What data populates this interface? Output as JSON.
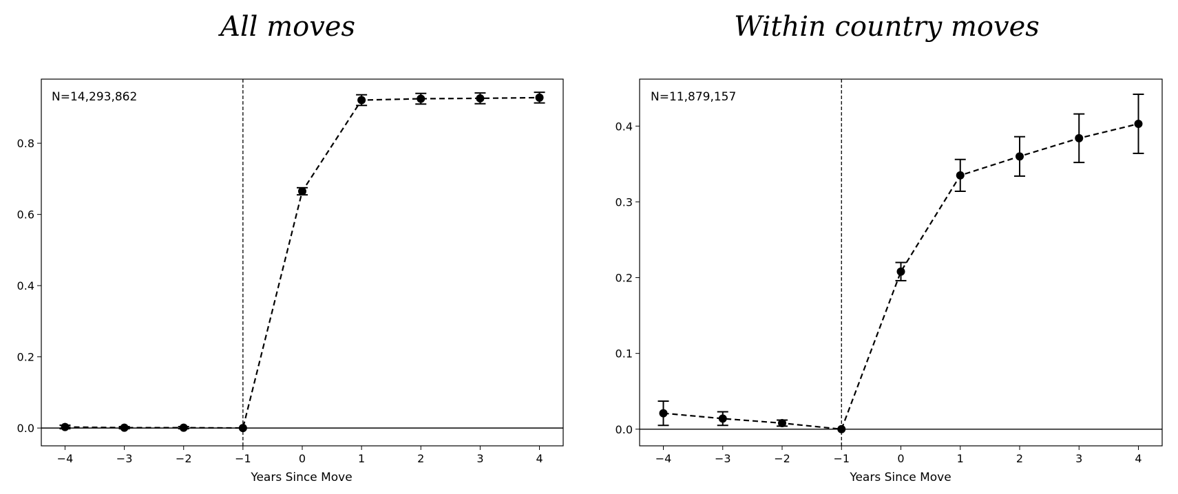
{
  "chart_data": [
    {
      "type": "line",
      "title": "All moves",
      "xlabel": "Years Since Move",
      "ylabel": "",
      "annotation": "N=14,293,862",
      "x": [
        -4,
        -3,
        -2,
        -1,
        0,
        1,
        2,
        3,
        4
      ],
      "xticks": [
        "−4",
        "−3",
        "−2",
        "−1",
        "0",
        "1",
        "2",
        "3",
        "4"
      ],
      "xlim": [
        -4.4,
        4.4
      ],
      "yticks": [
        "0.0",
        "0.2",
        "0.4",
        "0.6",
        "0.8"
      ],
      "ylim": [
        -0.05,
        0.98
      ],
      "series": [
        {
          "values": [
            0.003,
            0.001,
            0.001,
            0.0,
            0.665,
            0.921,
            0.925,
            0.926,
            0.928
          ],
          "err": [
            0.005,
            0.003,
            0.003,
            0.0,
            0.01,
            0.015,
            0.015,
            0.015,
            0.015
          ]
        }
      ],
      "reference_lines": {
        "vertical_x": -1,
        "horizontal_y": 0
      },
      "grid": false
    },
    {
      "type": "line",
      "title": "Within country moves",
      "xlabel": "Years Since Move",
      "ylabel": "",
      "annotation": "N=11,879,157",
      "x": [
        -4,
        -3,
        -2,
        -1,
        0,
        1,
        2,
        3,
        4
      ],
      "xticks": [
        "−4",
        "−3",
        "−2",
        "−1",
        "0",
        "1",
        "2",
        "3",
        "4"
      ],
      "xlim": [
        -4.4,
        4.4
      ],
      "yticks": [
        "0.0",
        "0.1",
        "0.2",
        "0.3",
        "0.4"
      ],
      "ylim": [
        -0.022,
        0.462
      ],
      "series": [
        {
          "values": [
            0.021,
            0.014,
            0.008,
            0.0,
            0.208,
            0.335,
            0.36,
            0.384,
            0.403
          ],
          "err": [
            0.016,
            0.009,
            0.004,
            0.0,
            0.012,
            0.021,
            0.026,
            0.032,
            0.039
          ]
        }
      ],
      "reference_lines": {
        "vertical_x": -1,
        "horizontal_y": 0
      },
      "grid": false
    }
  ]
}
